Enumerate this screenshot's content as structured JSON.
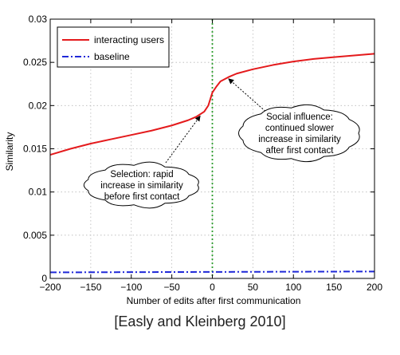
{
  "chart_data": {
    "type": "line",
    "title": "",
    "xlabel": "Number of edits after first communication",
    "ylabel": "Similarity",
    "xlim": [
      -200,
      200
    ],
    "ylim": [
      0,
      0.03
    ],
    "x_ticks": [
      "−200",
      "−150",
      "−100",
      "−50",
      "0",
      "50",
      "100",
      "150",
      "200"
    ],
    "x_tick_values": [
      -200,
      -150,
      -100,
      -50,
      0,
      50,
      100,
      150,
      200
    ],
    "y_ticks": [
      "0",
      "0.005",
      "0.01",
      "0.015",
      "0.02",
      "0.025",
      "0.03"
    ],
    "y_tick_values": [
      0,
      0.005,
      0.01,
      0.015,
      0.02,
      0.025,
      0.03
    ],
    "grid": true,
    "legend_position": "top-left",
    "series": [
      {
        "name": "interacting users",
        "color": "#e41a1c",
        "style": "solid",
        "x": [
          -200,
          -175,
          -150,
          -125,
          -100,
          -75,
          -50,
          -40,
          -30,
          -20,
          -10,
          -5,
          0,
          5,
          10,
          20,
          30,
          50,
          75,
          100,
          125,
          150,
          175,
          200
        ],
        "y": [
          0.0143,
          0.015,
          0.0156,
          0.0161,
          0.0166,
          0.0171,
          0.0177,
          0.018,
          0.0183,
          0.0187,
          0.0193,
          0.02,
          0.0215,
          0.0222,
          0.0228,
          0.0233,
          0.0237,
          0.0242,
          0.0247,
          0.0251,
          0.0254,
          0.0256,
          0.0258,
          0.026
        ]
      },
      {
        "name": "baseline",
        "color": "#1f28d8",
        "style": "dashdot",
        "x": [
          -200,
          200
        ],
        "y": [
          0.0007,
          0.0008
        ]
      }
    ],
    "vertical_line": {
      "x": 0,
      "color": "#2e9e2e",
      "style": "dotted"
    },
    "annotations": [
      {
        "lines": [
          "Selection: rapid",
          "increase in similarity",
          "before first contact"
        ],
        "arrow_to": [
          -15,
          0.0188
        ]
      },
      {
        "lines": [
          "Social influence:",
          "continued slower",
          "increase in similarity",
          "after first contact"
        ],
        "arrow_to": [
          20,
          0.0231
        ]
      }
    ]
  },
  "caption": "[Easly and Kleinberg 2010]"
}
